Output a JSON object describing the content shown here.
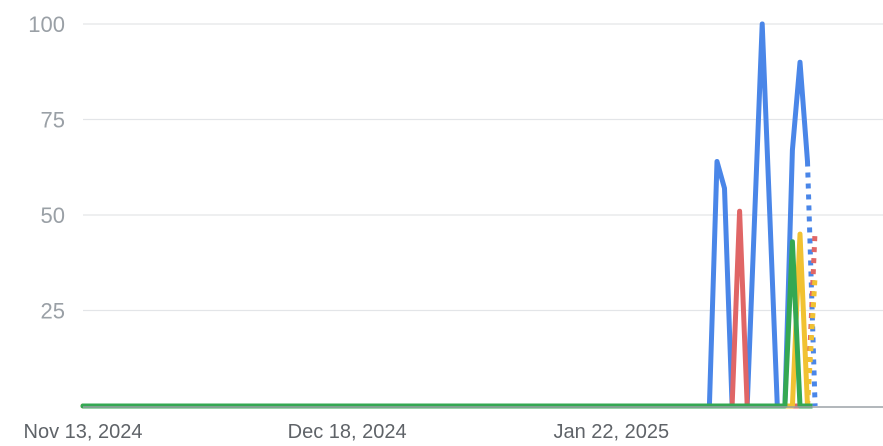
{
  "chart_data": {
    "type": "line",
    "title": "",
    "xlabel": "",
    "ylabel": "",
    "ylim": [
      0,
      100
    ],
    "xlim": [
      "2024-11-13",
      "2025-02-27"
    ],
    "grid": true,
    "legend": "none",
    "y_ticks": [
      "100",
      "75",
      "50",
      "25"
    ],
    "x_ticks": [
      {
        "date": "2024-11-13",
        "label": "Nov 13, 2024"
      },
      {
        "date": "2024-12-18",
        "label": "Dec 18, 2024"
      },
      {
        "date": "2025-01-22",
        "label": "Jan 22, 2025"
      }
    ],
    "series": [
      {
        "color": "#4a86e8",
        "values": [
          [
            "2024-11-13",
            0
          ],
          [
            "2025-02-04",
            0
          ],
          [
            "2025-02-05",
            64
          ],
          [
            "2025-02-06",
            57
          ],
          [
            "2025-02-07",
            0
          ],
          [
            "2025-02-08",
            0
          ],
          [
            "2025-02-09",
            0
          ],
          [
            "2025-02-10",
            50
          ],
          [
            "2025-02-11",
            100
          ],
          [
            "2025-02-12",
            50
          ],
          [
            "2025-02-13",
            0
          ],
          [
            "2025-02-14",
            0
          ],
          [
            "2025-02-15",
            67
          ],
          [
            "2025-02-16",
            90
          ],
          [
            "2025-02-17",
            64
          ]
        ],
        "partial_values": [
          [
            "2025-02-17",
            64
          ],
          [
            "2025-02-18",
            0
          ]
        ]
      },
      {
        "color": "#e06666",
        "values": [
          [
            "2024-11-13",
            0
          ],
          [
            "2025-02-07",
            0
          ],
          [
            "2025-02-08",
            51
          ],
          [
            "2025-02-09",
            0
          ],
          [
            "2025-02-17",
            0
          ]
        ],
        "partial_values": [
          [
            "2025-02-17",
            0
          ],
          [
            "2025-02-18",
            46
          ]
        ]
      },
      {
        "color": "#f1c232",
        "values": [
          [
            "2024-11-13",
            0
          ],
          [
            "2025-02-15",
            0
          ],
          [
            "2025-02-16",
            45
          ],
          [
            "2025-02-17",
            0
          ]
        ],
        "partial_values": [
          [
            "2025-02-17",
            0
          ],
          [
            "2025-02-18",
            34
          ]
        ]
      },
      {
        "color": "#34a853",
        "values": [
          [
            "2024-11-13",
            0
          ],
          [
            "2025-02-14",
            0
          ],
          [
            "2025-02-15",
            43
          ],
          [
            "2025-02-16",
            0
          ],
          [
            "2025-02-17",
            0
          ]
        ],
        "partial_values": [
          [
            "2025-02-17",
            0
          ],
          [
            "2025-02-18",
            0
          ]
        ]
      }
    ]
  }
}
